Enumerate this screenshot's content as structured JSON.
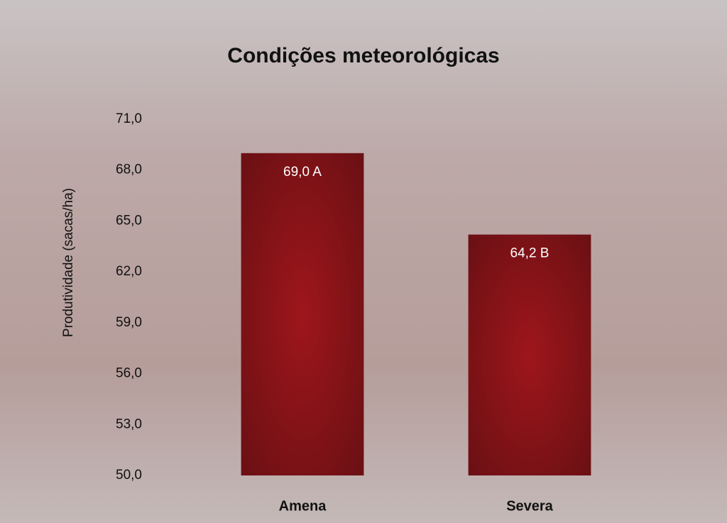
{
  "chart_data": {
    "type": "bar",
    "title": "Condições meteorológicas",
    "y_label": "Produtividade (sacas/ha)",
    "categories": [
      "Amena",
      "Severa"
    ],
    "values": [
      69.0,
      64.2
    ],
    "value_labels": [
      "69,0 A",
      "64,2 B"
    ],
    "color": "#8b1216",
    "ylim": [
      50,
      71
    ],
    "yticks": [
      {
        "value": 50,
        "label": "50,0"
      },
      {
        "value": 53,
        "label": "53,0"
      },
      {
        "value": 56,
        "label": "56,0"
      },
      {
        "value": 59,
        "label": "59,0"
      },
      {
        "value": 62,
        "label": "62,0"
      },
      {
        "value": 65,
        "label": "65,0"
      },
      {
        "value": 68,
        "label": "68,0"
      },
      {
        "value": 71,
        "label": "71,0"
      }
    ],
    "grid": false
  }
}
